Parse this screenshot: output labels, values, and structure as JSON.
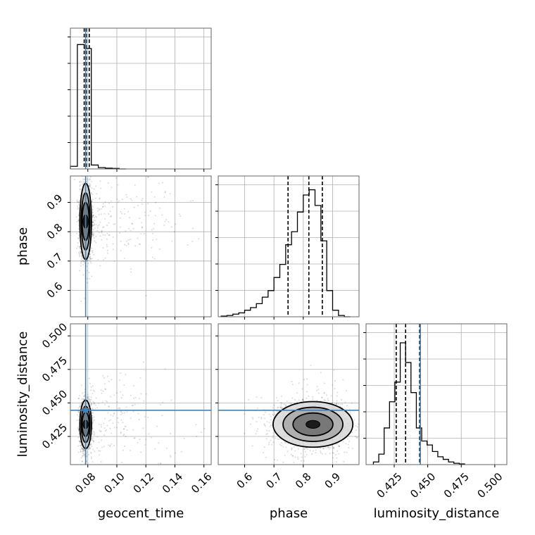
{
  "chart_data": {
    "type": "corner",
    "parameters": [
      "geocent_time",
      "phase",
      "luminosity_distance"
    ],
    "truths": {
      "geocent_time": 0.0785,
      "luminosity_distance": 0.4445
    },
    "truth_color": "#4682b4",
    "grid": true,
    "axes": {
      "geocent_time": {
        "range": [
          0.068,
          0.165
        ],
        "ticks": [
          0.08,
          0.1,
          0.12,
          0.14,
          0.16
        ],
        "tick_labels": [
          "0.08",
          "0.10",
          "0.12",
          "0.14",
          "0.16"
        ]
      },
      "phase": {
        "range": [
          0.51,
          0.99
        ],
        "ticks": [
          0.6,
          0.7,
          0.8,
          0.9
        ],
        "tick_labels": [
          "0.6",
          "0.7",
          "0.8",
          "0.9"
        ]
      },
      "luminosity_distance": {
        "range": [
          0.404,
          0.509
        ],
        "ticks": [
          0.425,
          0.45,
          0.475,
          0.5
        ],
        "tick_labels": [
          "0.425",
          "0.450",
          "0.475",
          "0.500"
        ]
      }
    },
    "hist_1d": {
      "geocent_time": {
        "bins": [
          0.068,
          0.0728,
          0.0776,
          0.0824,
          0.0872,
          0.092,
          0.0968,
          0.1016,
          0.1064
        ],
        "counts": [
          0.02,
          0.95,
          0.92,
          0.03,
          0.01,
          0.006,
          0.004,
          0.0
        ],
        "quantiles": [
          0.0775,
          0.079,
          0.081
        ]
      },
      "phase": {
        "bins": [
          0.52,
          0.54,
          0.56,
          0.58,
          0.6,
          0.62,
          0.64,
          0.66,
          0.68,
          0.7,
          0.72,
          0.74,
          0.76,
          0.78,
          0.8,
          0.82,
          0.84,
          0.86,
          0.88,
          0.9,
          0.92,
          0.94,
          0.96
        ],
        "counts": [
          0.005,
          0.01,
          0.02,
          0.03,
          0.05,
          0.07,
          0.1,
          0.15,
          0.2,
          0.3,
          0.4,
          0.55,
          0.65,
          0.8,
          0.93,
          0.97,
          0.85,
          0.58,
          0.2,
          0.05,
          0.01,
          0.0
        ],
        "quantiles": [
          0.748,
          0.819,
          0.865
        ]
      },
      "luminosity_distance": {
        "bins": [
          0.4095,
          0.4135,
          0.4175,
          0.4215,
          0.4255,
          0.4295,
          0.4335,
          0.4375,
          0.4415,
          0.4455,
          0.4495,
          0.4535,
          0.4575,
          0.4615,
          0.4655,
          0.4695,
          0.4735,
          0.4775
        ],
        "counts": [
          0.02,
          0.08,
          0.28,
          0.48,
          0.63,
          0.93,
          0.78,
          0.55,
          0.28,
          0.18,
          0.15,
          0.1,
          0.06,
          0.04,
          0.02,
          0.01,
          0.005
        ],
        "quantiles": [
          0.4265,
          0.4335,
          0.444
        ]
      }
    },
    "hist_2d": [
      {
        "x": "geocent_time",
        "y": "phase",
        "center": [
          0.0785,
          0.835
        ],
        "spread": [
          0.002,
          0.065
        ],
        "tail_spread": [
          0.03,
          0.07
        ]
      },
      {
        "x": "geocent_time",
        "y": "luminosity_distance",
        "center": [
          0.0785,
          0.434
        ],
        "spread": [
          0.002,
          0.009
        ],
        "tail_spread": [
          0.03,
          0.02
        ]
      },
      {
        "x": "phase",
        "y": "luminosity_distance",
        "center": [
          0.833,
          0.434
        ],
        "spread": [
          0.068,
          0.0085
        ],
        "tail_spread": [
          0.08,
          0.016
        ]
      }
    ]
  }
}
